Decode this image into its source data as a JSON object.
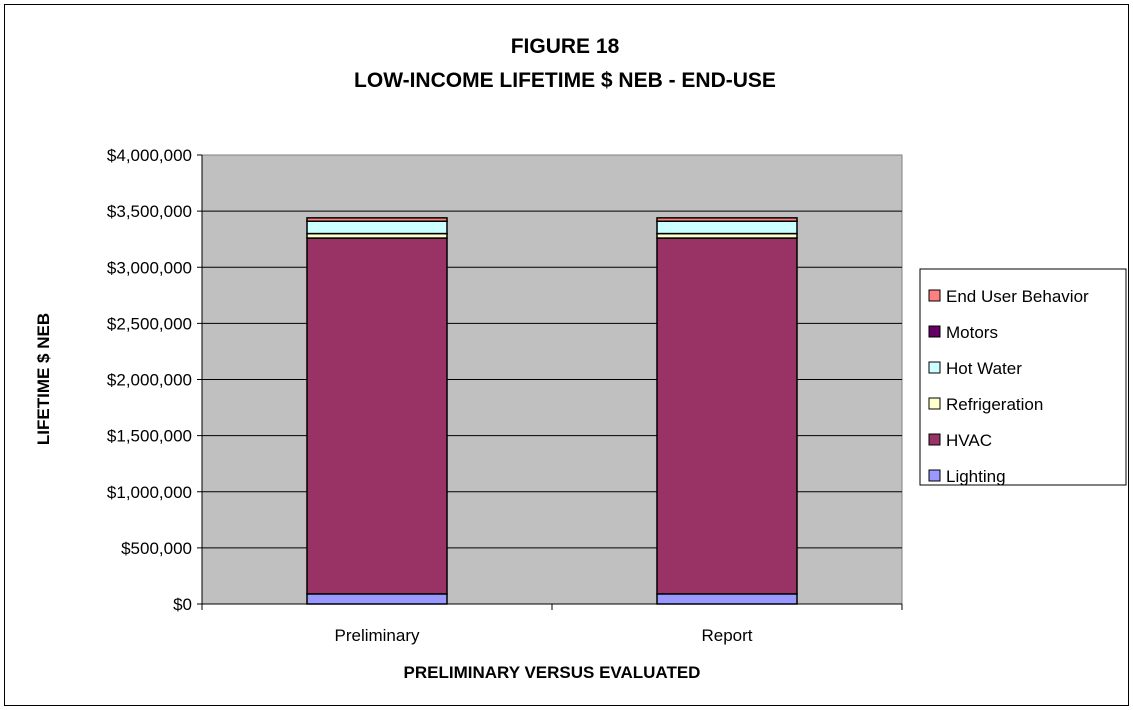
{
  "chart_data": {
    "type": "bar",
    "stacked": true,
    "title": "FIGURE 18",
    "subtitle": "LOW-INCOME LIFETIME $ NEB - END-USE",
    "xlabel": "PRELIMINARY VERSUS EVALUATED",
    "ylabel": "LIFETIME $ NEB",
    "ylim": [
      0,
      4000000
    ],
    "yticks": [
      "$0",
      "$500,000",
      "$1,000,000",
      "$1,500,000",
      "$2,000,000",
      "$2,500,000",
      "$3,000,000",
      "$3,500,000",
      "$4,000,000"
    ],
    "ytick_values": [
      0,
      500000,
      1000000,
      1500000,
      2000000,
      2500000,
      3000000,
      3500000,
      4000000
    ],
    "grid": true,
    "legend_position": "right",
    "plot_background": "#c0c0c0",
    "categories": [
      "Preliminary",
      "Report"
    ],
    "series": [
      {
        "name": "Lighting",
        "color": "#9999ff",
        "values": [
          90000,
          90000
        ]
      },
      {
        "name": "HVAC",
        "color": "#993366",
        "values": [
          3170000,
          3170000
        ]
      },
      {
        "name": "Refrigeration",
        "color": "#ffffcc",
        "values": [
          40000,
          40000
        ]
      },
      {
        "name": "Hot Water",
        "color": "#ccffff",
        "values": [
          110000,
          110000
        ]
      },
      {
        "name": "Motors",
        "color": "#660066",
        "values": [
          0,
          0
        ]
      },
      {
        "name": "End User Behavior",
        "color": "#ff8080",
        "values": [
          30000,
          30000
        ]
      }
    ]
  }
}
